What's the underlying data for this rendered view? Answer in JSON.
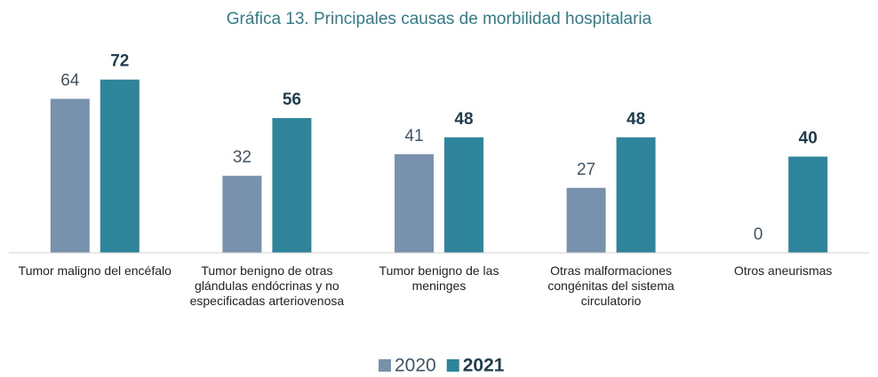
{
  "chart_data": {
    "type": "bar",
    "title": "Gráfica 13. Principales causas de morbilidad hospitalaria",
    "categories": [
      "Tumor maligno del encéfalo",
      "Tumor benigno de otras glándulas endócrinas y no especificadas arteriovenosa",
      "Tumor benigno de las meninges",
      "Otras malformaciones congénitas del sistema circulatorio",
      "Otros aneurismas"
    ],
    "series": [
      {
        "name": "2020",
        "color": "#7892ad",
        "values": [
          64,
          32,
          41,
          27,
          0
        ]
      },
      {
        "name": "2021",
        "color": "#2e859b",
        "values": [
          72,
          56,
          48,
          48,
          40
        ]
      }
    ],
    "ylim": [
      0,
      80
    ],
    "legend": "bottom"
  }
}
